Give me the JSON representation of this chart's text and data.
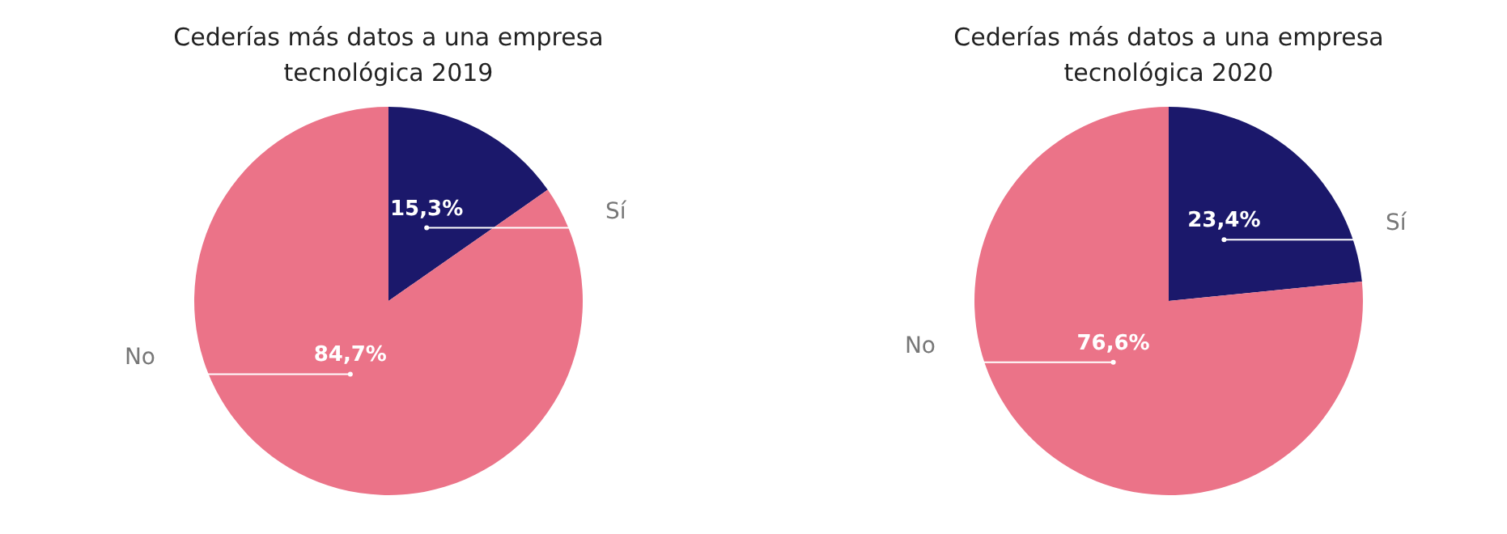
{
  "chart_data": [
    {
      "type": "pie",
      "title": "Cederías más datos a una empresa tecnológica 2019",
      "categories": [
        "Sí",
        "No"
      ],
      "values": [
        15.3,
        84.7
      ],
      "colors": [
        "#1b186b",
        "#eb7388"
      ],
      "value_labels": [
        "15,3%",
        "84,7%"
      ]
    },
    {
      "type": "pie",
      "title": "Cederías más datos a una empresa tecnológica 2020",
      "categories": [
        "Sí",
        "No"
      ],
      "values": [
        23.4,
        76.6
      ],
      "colors": [
        "#1b186b",
        "#eb7388"
      ],
      "value_labels": [
        "23,4%",
        "76,6%"
      ]
    }
  ]
}
